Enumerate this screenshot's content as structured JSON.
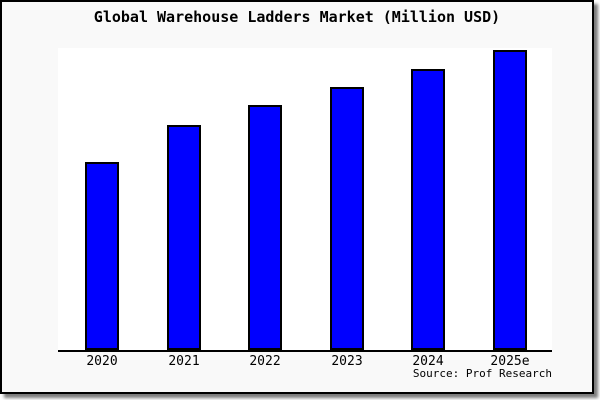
{
  "chart_data": {
    "type": "bar",
    "title": "Global Warehouse Ladders Market (Million USD)",
    "unit": "Million USD",
    "categories": [
      "2020",
      "2021",
      "2022",
      "2023",
      "2024",
      "2025e"
    ],
    "values_percent_of_max": [
      62.7,
      75.0,
      81.7,
      87.7,
      93.7,
      100.0
    ],
    "xlabel": "",
    "ylabel": "",
    "y_axis_labeled": false,
    "grid": false,
    "legend": false,
    "bar_color": "#0000ff",
    "bar_border_color": "#000000",
    "plot_background": "#ffffff",
    "page_background": "#f9f9f9",
    "axis_color": "#000000",
    "source_note": "Source: Prof Research"
  }
}
